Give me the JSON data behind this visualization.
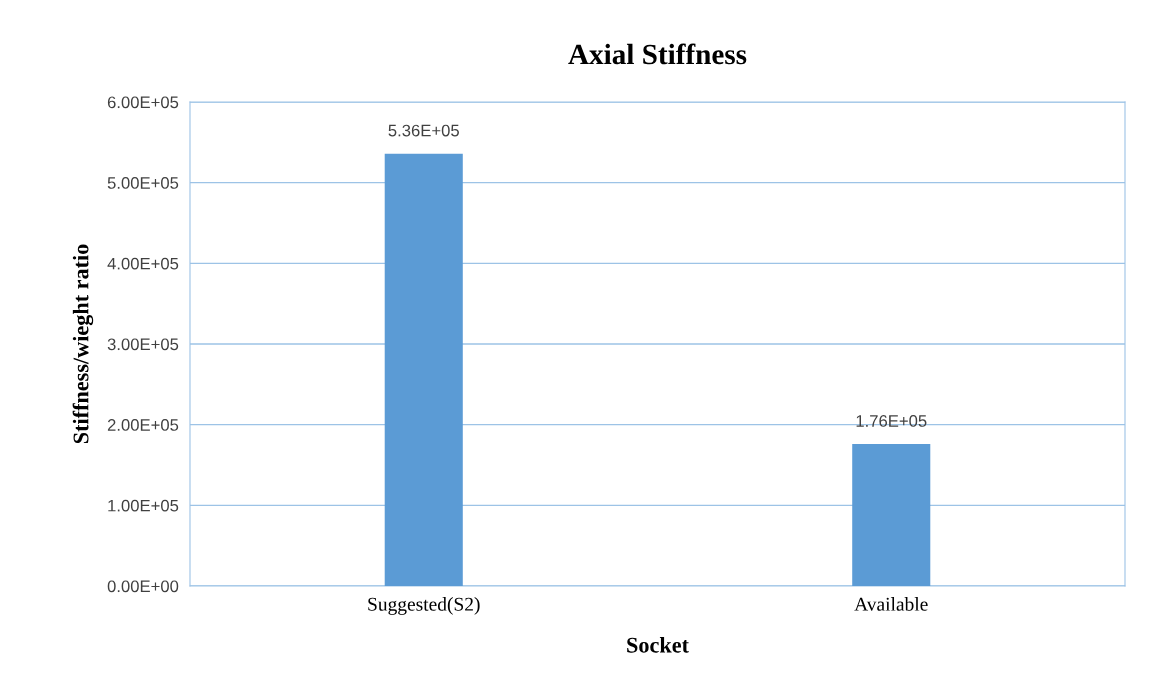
{
  "chart_data": {
    "type": "bar",
    "title": "Axial Stiffness",
    "xlabel": "Socket",
    "ylabel": "Stiffness/wieght ratio",
    "categories": [
      "Suggested(S2)",
      "Available"
    ],
    "values": [
      536000,
      176000
    ],
    "color": "#5b9bd5",
    "value_labels": [
      "5.36E+05",
      "1.76E+05"
    ],
    "ylim": [
      0,
      600000
    ],
    "yticks": [
      {
        "value": 0,
        "label": "0.00E+00"
      },
      {
        "value": 100000,
        "label": "1.00E+05"
      },
      {
        "value": 200000,
        "label": "2.00E+05"
      },
      {
        "value": 300000,
        "label": "3.00E+05"
      },
      {
        "value": 400000,
        "label": "4.00E+05"
      },
      {
        "value": 500000,
        "label": "5.00E+05"
      },
      {
        "value": 600000,
        "label": "6.00E+05"
      }
    ],
    "grid": "y",
    "legend": false
  }
}
